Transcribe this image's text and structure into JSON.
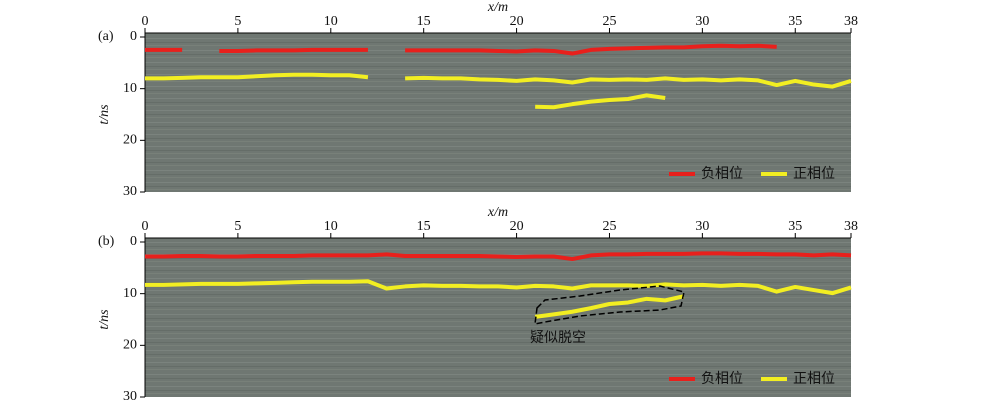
{
  "chart_data": [
    {
      "type": "line",
      "panel_label": "(a)",
      "x_label": "x/m",
      "y_label": "t/ns",
      "x": [
        0,
        1,
        2,
        3,
        4,
        5,
        6,
        7,
        8,
        9,
        10,
        11,
        12,
        13,
        14,
        15,
        16,
        17,
        18,
        19,
        20,
        21,
        22,
        23,
        24,
        25,
        26,
        27,
        28,
        29,
        30,
        31,
        32,
        33,
        34,
        35,
        36,
        37,
        38
      ],
      "xlim": [
        0,
        38
      ],
      "xticks": [
        0,
        5,
        10,
        15,
        20,
        25,
        30,
        35,
        38
      ],
      "ylim": [
        0,
        30
      ],
      "yticks": [
        0,
        10,
        20,
        30
      ],
      "invert_y": true,
      "legend": "lower right",
      "series": [
        {
          "name": "负相位",
          "color": "#e8201c",
          "values": [
            2.5,
            2.5,
            2.5,
            null,
            2.7,
            2.7,
            2.6,
            2.6,
            2.6,
            2.5,
            2.5,
            2.5,
            2.5,
            null,
            2.6,
            2.6,
            2.6,
            2.6,
            2.6,
            2.7,
            2.8,
            2.6,
            2.7,
            3.2,
            2.5,
            2.3,
            2.2,
            2.1,
            2.0,
            2.0,
            1.8,
            1.7,
            1.8,
            1.7,
            1.9,
            null,
            null,
            null,
            null
          ]
        },
        {
          "name": "正相位",
          "color": "#f2ee22",
          "values": [
            8,
            8,
            7.9,
            7.8,
            7.8,
            7.8,
            7.6,
            7.4,
            7.3,
            7.3,
            7.4,
            7.4,
            7.8,
            null,
            8,
            7.9,
            8,
            8,
            8.2,
            8.3,
            8.5,
            8.2,
            8.4,
            8.8,
            8.2,
            8.3,
            8.2,
            8.3,
            8,
            8.3,
            8.2,
            8.4,
            8.2,
            8.4,
            9.3,
            8.5,
            9.2,
            9.6,
            8.5
          ]
        },
        {
          "color": "#f2ee22",
          "values": [
            null,
            null,
            null,
            null,
            null,
            null,
            null,
            null,
            null,
            null,
            null,
            null,
            null,
            null,
            null,
            null,
            null,
            null,
            null,
            null,
            null,
            13.5,
            13.6,
            13,
            12.5,
            12.2,
            12,
            11.3,
            11.8,
            null,
            null,
            null,
            null,
            null,
            null,
            null,
            null,
            null,
            null
          ]
        }
      ]
    },
    {
      "type": "line",
      "panel_label": "(b)",
      "x_label": "x/m",
      "y_label": "t/ns",
      "annotation": "疑似脱空",
      "x": [
        0,
        1,
        2,
        3,
        4,
        5,
        6,
        7,
        8,
        9,
        10,
        11,
        12,
        13,
        14,
        15,
        16,
        17,
        18,
        19,
        20,
        21,
        22,
        23,
        24,
        25,
        26,
        27,
        28,
        29,
        30,
        31,
        32,
        33,
        34,
        35,
        36,
        37,
        38
      ],
      "xlim": [
        0,
        38
      ],
      "xticks": [
        0,
        5,
        10,
        15,
        20,
        25,
        30,
        35,
        38
      ],
      "ylim": [
        0,
        30
      ],
      "yticks": [
        0,
        10,
        20,
        30
      ],
      "invert_y": true,
      "legend": "lower right",
      "series": [
        {
          "name": "负相位",
          "color": "#e8201c",
          "values": [
            2.8,
            2.8,
            2.7,
            2.7,
            2.8,
            2.8,
            2.7,
            2.7,
            2.7,
            2.6,
            2.6,
            2.6,
            2.6,
            2.4,
            2.7,
            2.7,
            2.7,
            2.7,
            2.7,
            2.8,
            2.9,
            2.8,
            2.8,
            3.3,
            2.6,
            2.4,
            2.4,
            2.3,
            2.3,
            2.3,
            2.2,
            2.2,
            2.3,
            2.3,
            2.4,
            2.4,
            2.6,
            2.4,
            2.6
          ]
        },
        {
          "name": "正相位",
          "color": "#f2ee22",
          "values": [
            8.3,
            8.3,
            8.2,
            8.1,
            8.1,
            8.1,
            8,
            7.9,
            7.8,
            7.7,
            7.7,
            7.7,
            7.6,
            9,
            8.6,
            8.4,
            8.5,
            8.5,
            8.6,
            8.6,
            8.8,
            8.5,
            8.6,
            9,
            8.4,
            8.4,
            8.4,
            8.5,
            8.2,
            8.4,
            8.3,
            8.5,
            8.3,
            8.5,
            9.6,
            8.7,
            9.3,
            9.9,
            8.8
          ]
        },
        {
          "color": "#f2ee22",
          "values": [
            null,
            null,
            null,
            null,
            null,
            null,
            null,
            null,
            null,
            null,
            null,
            null,
            null,
            null,
            null,
            null,
            null,
            null,
            null,
            null,
            null,
            14.5,
            14,
            13.5,
            12.8,
            12,
            11.7,
            11,
            11.3,
            10.5,
            null,
            null,
            null,
            null,
            null,
            null,
            null,
            null,
            null
          ]
        }
      ]
    }
  ]
}
